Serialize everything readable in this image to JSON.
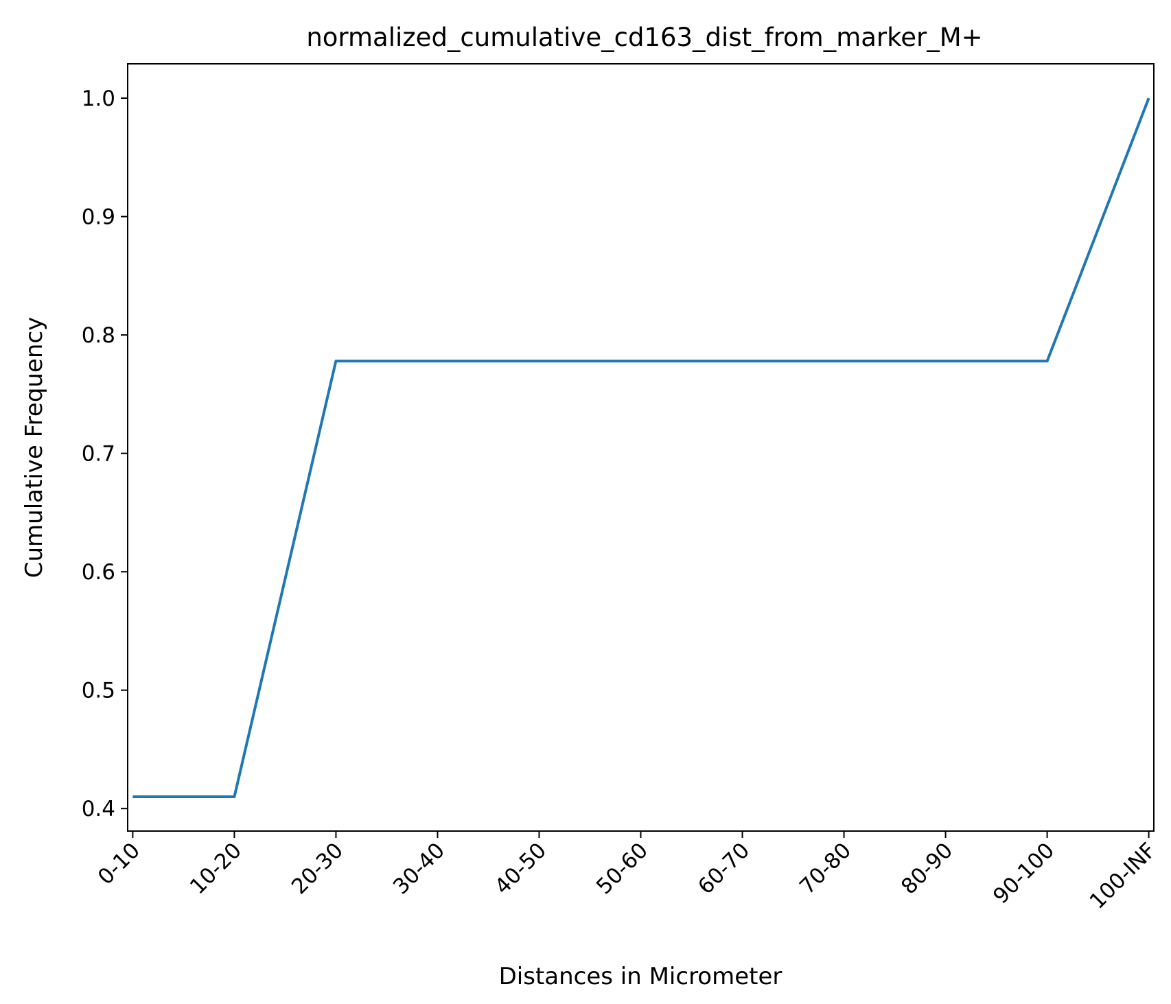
{
  "chart_data": {
    "type": "line",
    "title": "normalized_cumulative_cd163_dist_from_marker_M+",
    "xlabel": "Distances in Micrometer",
    "ylabel": "Cumulative Frequency",
    "categories": [
      "0-10",
      "10-20",
      "20-30",
      "30-40",
      "40-50",
      "50-60",
      "60-70",
      "70-80",
      "80-90",
      "90-100",
      "100-INF"
    ],
    "values": [
      0.41,
      0.41,
      0.778,
      0.778,
      0.778,
      0.778,
      0.778,
      0.778,
      0.778,
      0.778,
      1.0
    ],
    "yticks": [
      "0.4",
      "0.5",
      "0.6",
      "0.7",
      "0.8",
      "0.9",
      "1.0"
    ],
    "ylim": [
      0.381,
      1.029
    ],
    "grid": false,
    "line_color": "#1f77b4"
  }
}
